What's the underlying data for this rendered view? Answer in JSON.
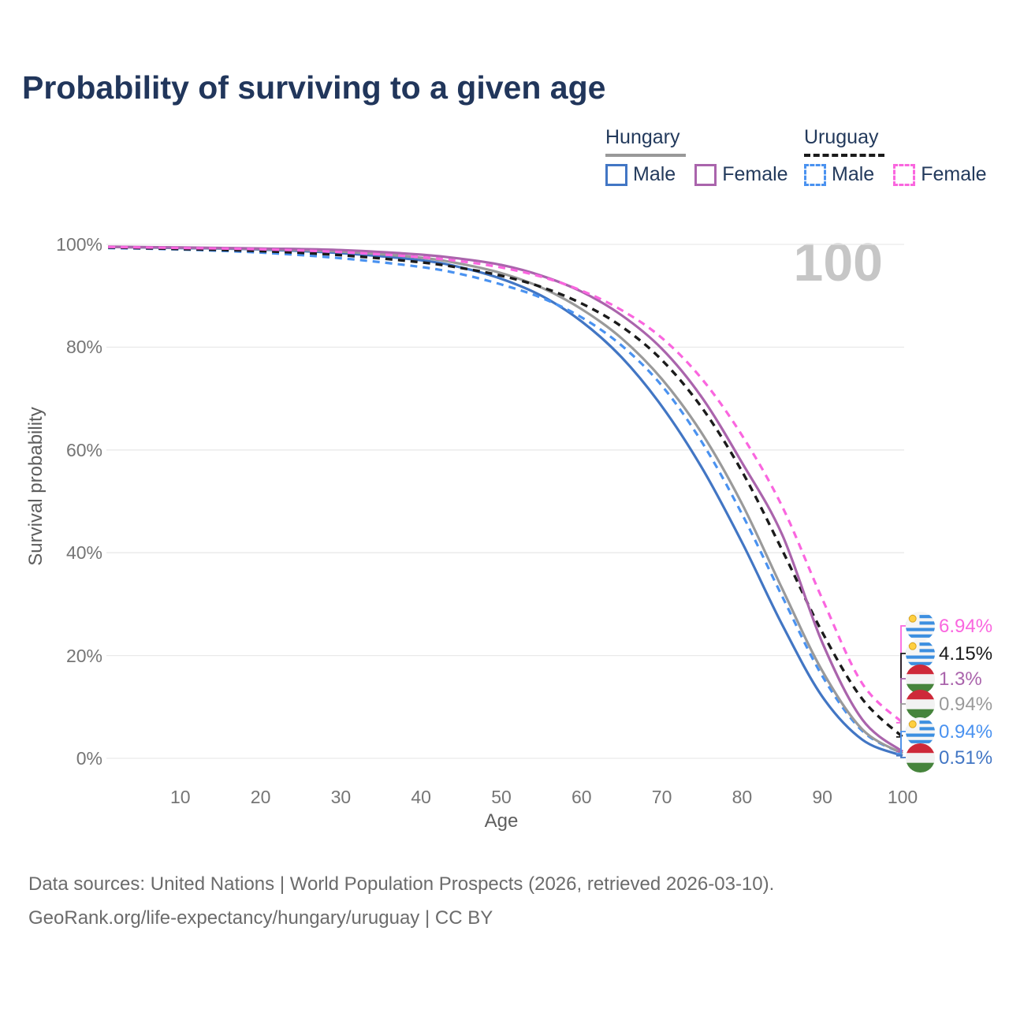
{
  "title": "Probability of surviving to a given age",
  "watermark": "100",
  "legend": {
    "groups": [
      {
        "country": "Hungary",
        "underline": {
          "style": "solid",
          "color": "#999999"
        },
        "items": [
          {
            "label": "Male",
            "color": "#4276C4",
            "dashed": false
          },
          {
            "label": "Female",
            "color": "#AA64AC",
            "dashed": false
          }
        ]
      },
      {
        "country": "Uruguay",
        "underline": {
          "style": "dashed",
          "color": "#1B1B1B"
        },
        "items": [
          {
            "label": "Male",
            "color": "#4A92F0",
            "dashed": true
          },
          {
            "label": "Female",
            "color": "#FA66DF",
            "dashed": true
          }
        ]
      }
    ]
  },
  "axes": {
    "y_title": "Survival probability",
    "x_title": "Age",
    "y_tick_labels": [
      "100%",
      "80%",
      "60%",
      "40%",
      "20%",
      "0%"
    ],
    "y_tick_values": [
      100,
      80,
      60,
      40,
      20,
      0
    ],
    "x_tick_labels": [
      "10",
      "20",
      "30",
      "40",
      "50",
      "60",
      "70",
      "80",
      "90",
      "100"
    ],
    "x_tick_values": [
      10,
      20,
      30,
      40,
      50,
      60,
      70,
      80,
      90,
      100
    ]
  },
  "chart_data": {
    "type": "line",
    "title": "Probability of surviving to a given age",
    "xlabel": "Age",
    "ylabel": "Survival probability",
    "xlim": [
      0,
      100
    ],
    "ylim": [
      0,
      100
    ],
    "grid": "horizontal",
    "legend_position": "top-right",
    "series": [
      {
        "name": "Hungary Male",
        "country": "Hungary",
        "color": "#4276C4",
        "dashed": false,
        "width": 3.2,
        "points": [
          [
            1,
            99.5
          ],
          [
            10,
            99.3
          ],
          [
            20,
            99.0
          ],
          [
            30,
            98.3
          ],
          [
            40,
            96.9
          ],
          [
            45,
            95.5
          ],
          [
            50,
            93.3
          ],
          [
            55,
            90.0
          ],
          [
            60,
            85.0
          ],
          [
            65,
            78.0
          ],
          [
            70,
            68.5
          ],
          [
            75,
            56.5
          ],
          [
            80,
            42.0
          ],
          [
            85,
            26.0
          ],
          [
            90,
            12.0
          ],
          [
            95,
            3.6
          ],
          [
            100,
            0.51
          ]
        ]
      },
      {
        "name": "Uruguay Male",
        "country": "Uruguay",
        "color": "#4A92F0",
        "dashed": true,
        "width": 3.2,
        "points": [
          [
            1,
            99.3
          ],
          [
            10,
            99.0
          ],
          [
            20,
            98.4
          ],
          [
            30,
            97.3
          ],
          [
            40,
            95.6
          ],
          [
            45,
            94.2
          ],
          [
            50,
            92.2
          ],
          [
            55,
            89.6
          ],
          [
            60,
            85.8
          ],
          [
            65,
            80.3
          ],
          [
            70,
            72.5
          ],
          [
            75,
            61.5
          ],
          [
            80,
            47.5
          ],
          [
            85,
            31.5
          ],
          [
            90,
            16.0
          ],
          [
            95,
            5.3
          ],
          [
            100,
            0.94
          ]
        ]
      },
      {
        "name": "Hungary",
        "country": "Hungary",
        "color": "#9A9A9A",
        "dashed": false,
        "width": 3.2,
        "points": [
          [
            1,
            99.5
          ],
          [
            10,
            99.35
          ],
          [
            20,
            99.1
          ],
          [
            30,
            98.6
          ],
          [
            40,
            97.4
          ],
          [
            45,
            96.2
          ],
          [
            50,
            94.4
          ],
          [
            55,
            91.6
          ],
          [
            60,
            87.4
          ],
          [
            65,
            81.7
          ],
          [
            70,
            73.8
          ],
          [
            75,
            63.2
          ],
          [
            80,
            49.5
          ],
          [
            85,
            33.0
          ],
          [
            90,
            17.0
          ],
          [
            95,
            5.6
          ],
          [
            100,
            0.94
          ]
        ]
      },
      {
        "name": "Uruguay",
        "country": "Uruguay",
        "color": "#1B1B1B",
        "dashed": true,
        "width": 3.4,
        "points": [
          [
            1,
            99.4
          ],
          [
            10,
            99.1
          ],
          [
            20,
            98.7
          ],
          [
            30,
            97.9
          ],
          [
            40,
            96.5
          ],
          [
            45,
            95.4
          ],
          [
            50,
            93.9
          ],
          [
            55,
            91.7
          ],
          [
            60,
            88.5
          ],
          [
            65,
            84.0
          ],
          [
            70,
            77.5
          ],
          [
            75,
            68.2
          ],
          [
            80,
            55.8
          ],
          [
            85,
            40.5
          ],
          [
            90,
            24.5
          ],
          [
            95,
            11.5
          ],
          [
            100,
            4.15
          ]
        ]
      },
      {
        "name": "Hungary Female",
        "country": "Hungary",
        "color": "#AA64AC",
        "dashed": false,
        "width": 3.2,
        "points": [
          [
            1,
            99.55
          ],
          [
            10,
            99.4
          ],
          [
            20,
            99.2
          ],
          [
            30,
            98.9
          ],
          [
            40,
            98.0
          ],
          [
            45,
            97.2
          ],
          [
            50,
            96.0
          ],
          [
            55,
            93.9
          ],
          [
            60,
            90.8
          ],
          [
            65,
            86.2
          ],
          [
            70,
            79.7
          ],
          [
            75,
            70.2
          ],
          [
            80,
            57.5
          ],
          [
            85,
            43.5
          ],
          [
            90,
            22.5
          ],
          [
            95,
            7.5
          ],
          [
            100,
            1.3
          ]
        ]
      },
      {
        "name": "Uruguay Female",
        "country": "Uruguay",
        "color": "#FA66DF",
        "dashed": true,
        "width": 3.2,
        "points": [
          [
            1,
            99.5
          ],
          [
            10,
            99.3
          ],
          [
            20,
            99.05
          ],
          [
            30,
            98.5
          ],
          [
            40,
            97.5
          ],
          [
            45,
            96.7
          ],
          [
            50,
            95.5
          ],
          [
            55,
            93.7
          ],
          [
            60,
            91.0
          ],
          [
            65,
            87.2
          ],
          [
            70,
            81.8
          ],
          [
            75,
            73.8
          ],
          [
            80,
            62.8
          ],
          [
            85,
            49.0
          ],
          [
            90,
            31.0
          ],
          [
            95,
            14.5
          ],
          [
            100,
            6.94
          ]
        ]
      }
    ]
  },
  "end_labels": [
    {
      "text": "6.94%",
      "value": 6.94,
      "color": "#FA66DF",
      "flag": "uruguay-flag-icon",
      "series": "Uruguay Female"
    },
    {
      "text": "4.15%",
      "value": 4.15,
      "color": "#1B1B1B",
      "flag": "uruguay-flag-icon",
      "series": "Uruguay"
    },
    {
      "text": "1.3%",
      "value": 1.3,
      "color": "#AA64AC",
      "flag": "hungary-flag-icon",
      "series": "Hungary Female"
    },
    {
      "text": "0.94%",
      "value": 0.94,
      "color": "#9A9A9A",
      "flag": "hungary-flag-icon",
      "series": "Hungary"
    },
    {
      "text": "0.94%",
      "value": 0.94,
      "color": "#4A92F0",
      "flag": "uruguay-flag-icon",
      "series": "Uruguay Male"
    },
    {
      "text": "0.51%",
      "value": 0.51,
      "color": "#4276C4",
      "flag": "hungary-flag-icon",
      "series": "Hungary Male"
    }
  ],
  "footer": {
    "line1": "Data sources: United Nations | World Population Prospects (2026, retrieved 2026-03-10).",
    "line2": "GeoRank.org/life-expectancy/hungary/uruguay | CC BY"
  }
}
